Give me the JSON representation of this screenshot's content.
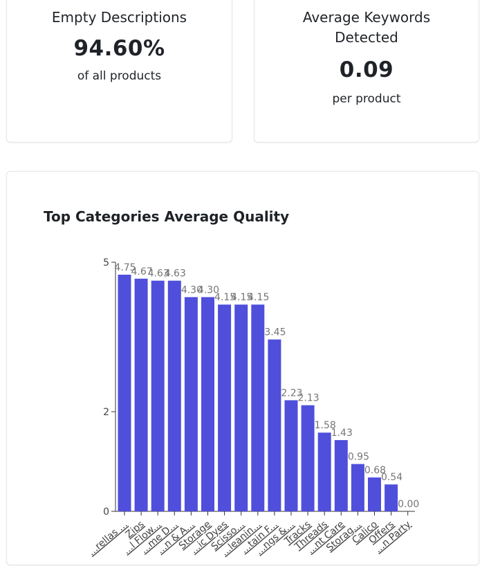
{
  "cards": {
    "empty_descriptions": {
      "title": "Empty Descriptions",
      "value": "94.60%",
      "subtitle": "of all products"
    },
    "avg_keywords": {
      "title": "Average Keywords Detected",
      "value": "0.09",
      "subtitle": "per product"
    }
  },
  "chart": {
    "title": "Top Categories Average Quality"
  },
  "chart_data": {
    "type": "bar",
    "title": "Top Categories Average Quality",
    "xlabel": "",
    "ylabel": "",
    "ylim": [
      0,
      5
    ],
    "y_ticks": [
      "0",
      "2",
      "5"
    ],
    "categories": [
      "...rellas ...",
      "Zips",
      "...l Flow...",
      "...me D...",
      "...n & A...",
      "Storage",
      "...ic Dyes",
      "Scisso...",
      "...leanin...",
      "...tain F...",
      "...ngs &...",
      "Tracks",
      "Threads",
      "...nt Care",
      "Storag...",
      "Calico",
      "Offers",
      "...n Party"
    ],
    "values": [
      4.75,
      4.67,
      4.63,
      4.63,
      4.3,
      4.3,
      4.15,
      4.15,
      4.15,
      3.45,
      2.23,
      2.13,
      1.58,
      1.43,
      0.95,
      0.68,
      0.54,
      0.0
    ],
    "value_labels": [
      "4.75",
      "4.67",
      "4.63",
      "4.63",
      "4.30",
      "4.30",
      "4.15",
      "4.15",
      "4.15",
      "3.45",
      "2.23",
      "2.13",
      "1.58",
      "1.43",
      "0.95",
      "0.68",
      "0.54",
      "0.00"
    ],
    "bar_color": "#4f4fdc",
    "grid": false,
    "legend": "none"
  }
}
